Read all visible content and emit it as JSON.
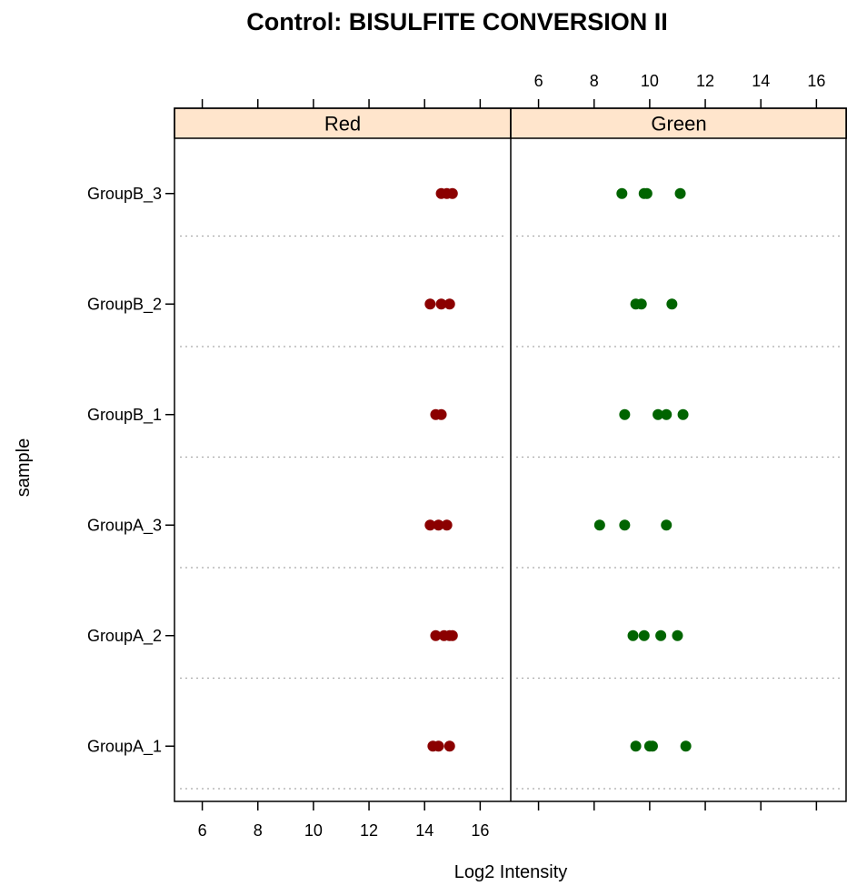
{
  "chart_data": {
    "type": "scatter",
    "title": "Control: BISULFITE CONVERSION II",
    "xlabel": "Log2 Intensity",
    "ylabel": "sample",
    "xlim": [
      5.0,
      17.1
    ],
    "x_ticks": [
      6,
      8,
      10,
      12,
      14,
      16
    ],
    "categories": [
      "GroupA_1",
      "GroupA_2",
      "GroupA_3",
      "GroupB_1",
      "GroupB_2",
      "GroupB_3"
    ],
    "panels": [
      {
        "name": "Red",
        "color": "#8b0000",
        "strip_color": "#ffe5cc",
        "values": {
          "GroupA_1": [
            14.3,
            14.5,
            14.9
          ],
          "GroupA_2": [
            14.4,
            14.7,
            14.9,
            15.0
          ],
          "GroupA_3": [
            14.2,
            14.5,
            14.8
          ],
          "GroupB_1": [
            14.4,
            14.6
          ],
          "GroupB_2": [
            14.2,
            14.6,
            14.9
          ],
          "GroupB_3": [
            14.6,
            14.8,
            15.0
          ]
        }
      },
      {
        "name": "Green",
        "color": "#006400",
        "strip_color": "#ffe5cc",
        "values": {
          "GroupA_1": [
            9.5,
            10.0,
            10.1,
            11.3
          ],
          "GroupA_2": [
            9.4,
            9.8,
            10.4,
            11.0
          ],
          "GroupA_3": [
            8.2,
            9.1,
            10.6
          ],
          "GroupB_1": [
            9.1,
            10.3,
            10.6,
            11.2
          ],
          "GroupB_2": [
            9.5,
            9.7,
            10.8
          ],
          "GroupB_3": [
            9.0,
            9.8,
            9.9,
            11.1
          ]
        }
      }
    ],
    "grid": "dotted horizontal separators between samples",
    "legend": "none"
  }
}
